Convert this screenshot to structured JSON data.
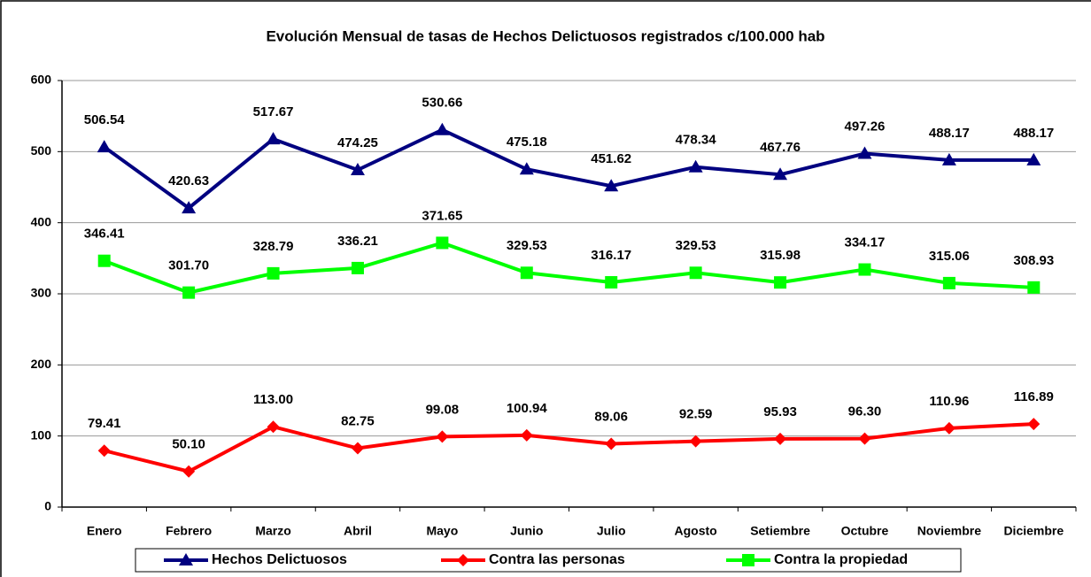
{
  "chart_data": {
    "type": "line",
    "title": "Evolución Mensual de tasas de Hechos Delictuosos registrados c/100.000 hab",
    "categories": [
      "Enero",
      "Febrero",
      "Marzo",
      "Abril",
      "Mayo",
      "Junio",
      "Julio",
      "Agosto",
      "Setiembre",
      "Octubre",
      "Noviembre",
      "Diciembre"
    ],
    "series": [
      {
        "name": "Hechos Delictuosos",
        "color": "#000080",
        "marker": "triangle",
        "values": [
          506.54,
          420.63,
          517.67,
          474.25,
          530.66,
          475.18,
          451.62,
          478.34,
          467.76,
          497.26,
          488.17,
          488.17
        ],
        "value_labels": [
          "506.54",
          "420.63",
          "517.67",
          "474.25",
          "530.66",
          "475.18",
          "451.62",
          "478.34",
          "467.76",
          "497.26",
          "488.17",
          "488.17"
        ]
      },
      {
        "name": "Contra las personas",
        "color": "#ff0000",
        "marker": "diamond",
        "values": [
          79.41,
          50.1,
          113,
          82.75,
          99.08,
          100.94,
          89.06,
          92.59,
          95.93,
          96.3,
          110.96,
          116.89
        ],
        "value_labels": [
          "79.41",
          "50.10",
          "113.00",
          "82.75",
          "99.08",
          "100.94",
          "89.06",
          "92.59",
          "95.93",
          "96.30",
          "110.96",
          "116.89"
        ]
      },
      {
        "name": "Contra la propiedad",
        "color": "#00ff00",
        "marker": "square",
        "values": [
          346.41,
          301.7,
          328.79,
          336.21,
          371.65,
          329.53,
          316.17,
          329.53,
          315.98,
          334.17,
          315.06,
          308.93
        ],
        "value_labels": [
          "346.41",
          "301.70",
          "328.79",
          "336.21",
          "371.65",
          "329.53",
          "316.17",
          "329.53",
          "315.98",
          "334.17",
          "315.06",
          "308.93"
        ]
      }
    ],
    "ylim": [
      0,
      600
    ],
    "yticks": [
      0,
      100,
      200,
      300,
      400,
      500,
      600
    ],
    "grid": true,
    "legend": "bottom"
  }
}
